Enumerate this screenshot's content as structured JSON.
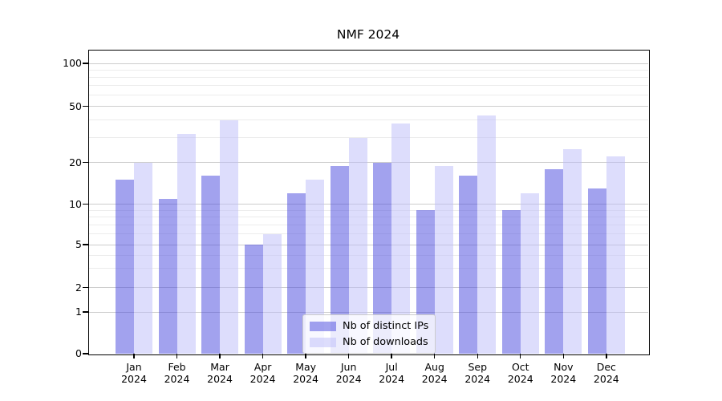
{
  "title": "NMF 2024",
  "legend": {
    "entries": [
      {
        "label": "Nb of distinct IPs",
        "color": "rgba(69,69,221,0.5)"
      },
      {
        "label": "Nb of downloads",
        "color": "rgba(187,187,250,0.5)"
      }
    ]
  },
  "y_axis": {
    "tick_labels": [
      "0",
      "1",
      "2",
      "5",
      "10",
      "20",
      "50",
      "100"
    ],
    "tick_values": [
      0,
      1,
      2,
      5,
      10,
      20,
      50,
      100
    ],
    "minor_values": [
      3,
      4,
      6,
      7,
      8,
      9,
      30,
      40,
      60,
      70,
      80,
      90
    ]
  },
  "x_axis": {
    "months": [
      "Jan",
      "Feb",
      "Mar",
      "Apr",
      "May",
      "Jun",
      "Jul",
      "Aug",
      "Sep",
      "Oct",
      "Nov",
      "Dec"
    ],
    "year": "2024"
  },
  "chart_data": {
    "type": "bar",
    "title": "NMF 2024",
    "categories": [
      "Jan 2024",
      "Feb 2024",
      "Mar 2024",
      "Apr 2024",
      "May 2024",
      "Jun 2024",
      "Jul 2024",
      "Aug 2024",
      "Sep 2024",
      "Oct 2024",
      "Nov 2024",
      "Dec 2024"
    ],
    "series": [
      {
        "name": "Nb of distinct IPs",
        "color": "rgba(69,69,221,0.5)",
        "values": [
          15,
          11,
          16,
          5,
          12,
          19,
          20,
          9,
          16,
          9,
          18,
          13
        ]
      },
      {
        "name": "Nb of downloads",
        "color": "rgba(187,187,250,0.5)",
        "values": [
          20,
          32,
          40,
          6,
          15,
          30,
          38,
          19,
          43,
          12,
          25,
          22
        ]
      }
    ],
    "xlabel": "",
    "ylabel": "",
    "yscale": "symlog",
    "yticks": [
      0,
      1,
      2,
      5,
      10,
      20,
      50,
      100
    ],
    "ylim": [
      0,
      125
    ],
    "grid": "horizontal major and minor",
    "legend_position": "lower center"
  }
}
